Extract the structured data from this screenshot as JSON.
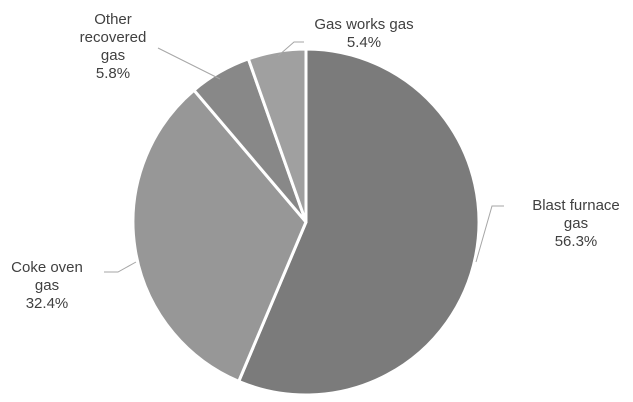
{
  "chart_data": {
    "type": "pie",
    "title": "",
    "start_angle_deg": 0,
    "direction": "clockwise",
    "slices": [
      {
        "label": [
          "Blast furnace",
          "gas"
        ],
        "name": "Blast furnace gas",
        "value": 56.3,
        "value_label": "56.3%",
        "color": "#7b7b7b"
      },
      {
        "label": [
          "Coke oven",
          "gas"
        ],
        "name": "Coke oven gas",
        "value": 32.4,
        "value_label": "32.4%",
        "color": "#979797"
      },
      {
        "label": [
          "Other",
          "recovered",
          "gas"
        ],
        "name": "Other recovered gas",
        "value": 5.8,
        "value_label": "5.8%",
        "color": "#888888"
      },
      {
        "label": [
          "Gas works gas"
        ],
        "name": "Gas works gas",
        "value": 5.4,
        "value_label": "5.4%",
        "color": "#a0a0a0"
      }
    ],
    "slice_border_color": "#ffffff",
    "leader_line_color": "#a6a6a6",
    "label_color": "#404040"
  }
}
